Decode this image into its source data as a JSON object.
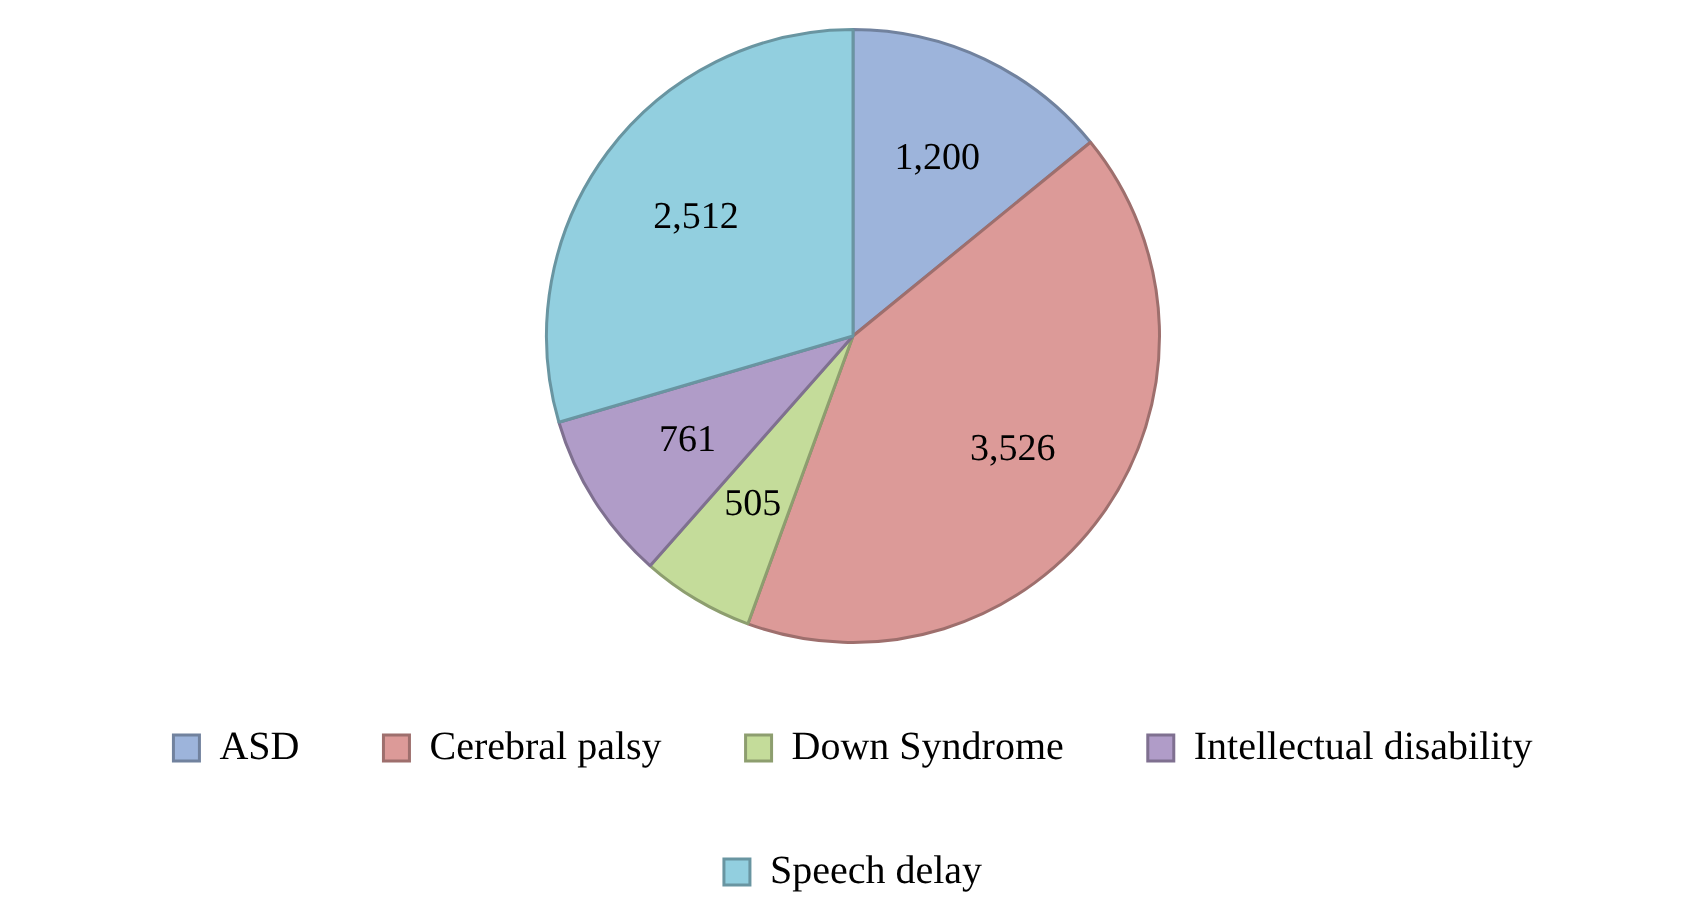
{
  "chart_data": {
    "type": "pie",
    "categories": [
      "ASD",
      "Cerebral palsy",
      "Down Syndrome",
      "Intellectual disability",
      "Speech delay"
    ],
    "values": [
      1200,
      3526,
      505,
      761,
      2512
    ],
    "colors": [
      "#9db4db",
      "#dc9a98",
      "#c4dc9a",
      "#b09cc8",
      "#92cfdf"
    ],
    "value_labels": [
      "1,200",
      "3,526",
      "505",
      "761",
      "2,512"
    ],
    "legend": "bottom"
  }
}
